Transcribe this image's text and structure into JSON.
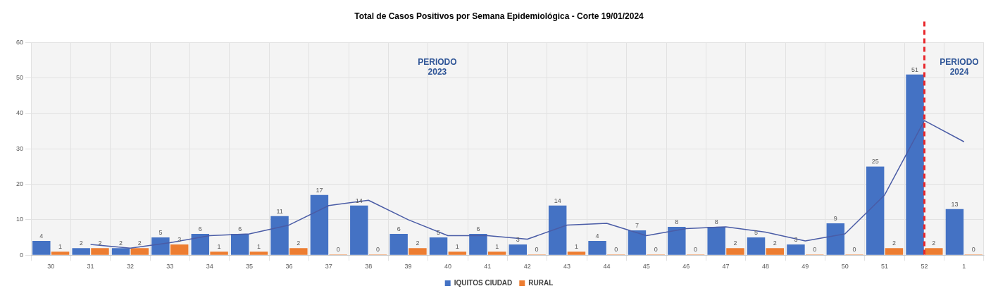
{
  "chart_data": {
    "type": "bar",
    "title": "Total de Casos Positivos por Semana Epidemiológica - Corte 19/01/2024",
    "categories": [
      "30",
      "31",
      "32",
      "33",
      "34",
      "35",
      "36",
      "37",
      "38",
      "39",
      "40",
      "41",
      "42",
      "43",
      "44",
      "45",
      "46",
      "47",
      "48",
      "49",
      "50",
      "51",
      "52",
      "1"
    ],
    "series": [
      {
        "name": "IQUITOS CIUDAD",
        "color": "#4472c4",
        "values": [
          4,
          2,
          2,
          5,
          6,
          6,
          11,
          17,
          14,
          6,
          5,
          6,
          3,
          14,
          4,
          7,
          8,
          8,
          5,
          3,
          9,
          25,
          51,
          13
        ],
        "value_labels": [
          "4",
          "2",
          "2",
          "5",
          "6",
          "6",
          "11",
          "17",
          "14",
          "6",
          "5",
          "6",
          "3",
          "14",
          "4",
          "7",
          "8",
          "8",
          "5",
          "3",
          "9",
          "25",
          "51",
          "13"
        ]
      },
      {
        "name": "RURAL",
        "color": "#ed7d31",
        "values": [
          1,
          2,
          2,
          3,
          1,
          1,
          2,
          0,
          0,
          2,
          1,
          1,
          0,
          1,
          0,
          0,
          0,
          2,
          2,
          0,
          0,
          2,
          2,
          0
        ],
        "value_labels": [
          "1",
          "2",
          "2",
          "3",
          "1",
          "1",
          "2",
          "0",
          "0",
          "2",
          "1",
          "1",
          "0",
          "1",
          "0",
          "0",
          "0",
          "2",
          "2",
          "0",
          "0",
          "2",
          "2",
          "0"
        ]
      },
      {
        "type": "line",
        "color": "#4a5ca6",
        "values": [
          null,
          3,
          2,
          3.5,
          5.5,
          6,
          8.5,
          14,
          15.5,
          10,
          5.5,
          5.5,
          4.5,
          8.5,
          9,
          5.5,
          7.5,
          8,
          6.5,
          4,
          6,
          17,
          38,
          32
        ]
      }
    ],
    "ylim": [
      0,
      60
    ],
    "yticks": [
      0,
      10,
      20,
      30,
      40,
      50,
      60
    ],
    "grid": true,
    "legend": "bottom",
    "ref_lines": [
      {
        "axis": "x",
        "value": "52",
        "color": "#e8262a",
        "line_style": "dashed"
      }
    ],
    "annotations": [
      "PERIODO\n2023",
      "PERIODO\n2024"
    ]
  }
}
